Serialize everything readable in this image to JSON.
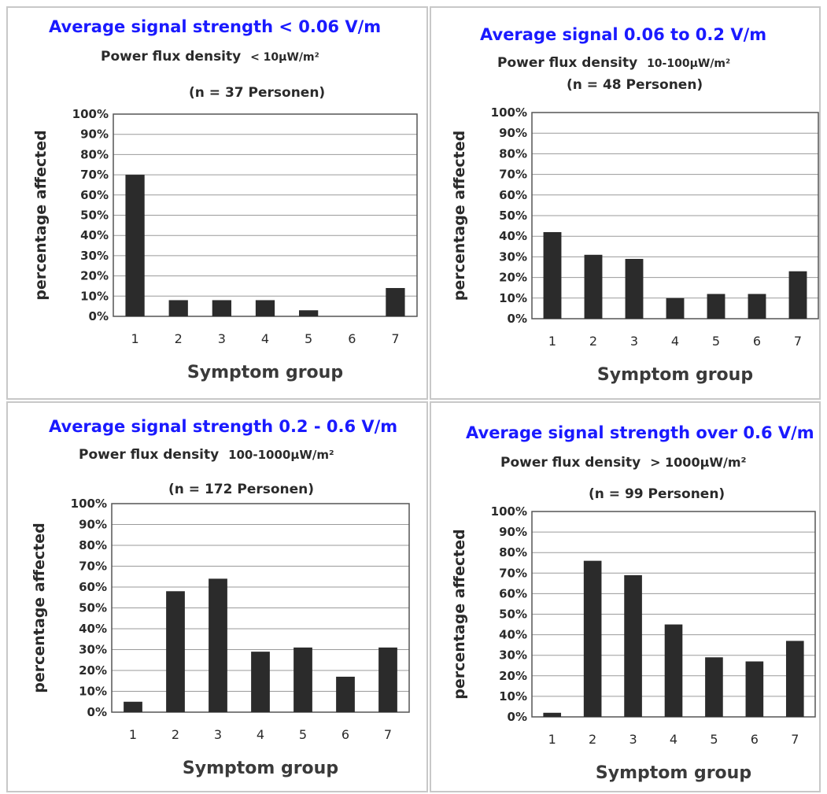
{
  "chart_data": [
    {
      "type": "bar",
      "title": "Average signal strength < 0.06 V/m",
      "subtitle_prefix": "Power flux density",
      "subtitle_value": "< 10μW/m²",
      "sample": "(n = 37 Personen)",
      "xlabel": "Symptom group",
      "ylabel": "percentage affected",
      "categories": [
        "1",
        "2",
        "3",
        "4",
        "5",
        "6",
        "7"
      ],
      "values": [
        70,
        8,
        8,
        8,
        3,
        0,
        14
      ],
      "ylim": [
        0,
        100
      ],
      "yticks": [
        "0%",
        "10%",
        "20%",
        "30%",
        "40%",
        "50%",
        "60%",
        "70%",
        "80%",
        "90%",
        "100%"
      ],
      "grid": true,
      "bar_color": "#2b2b2b",
      "title_color": "#1a1aff"
    },
    {
      "type": "bar",
      "title": "Average signal  0.06 to 0.2 V/m",
      "subtitle_prefix": "Power flux density",
      "subtitle_value": "10-100μW/m²",
      "sample": "(n = 48 Personen)",
      "xlabel": "Symptom group",
      "ylabel": "percentage affected",
      "categories": [
        "1",
        "2",
        "3",
        "4",
        "5",
        "6",
        "7"
      ],
      "values": [
        42,
        31,
        29,
        10,
        12,
        12,
        23
      ],
      "ylim": [
        0,
        100
      ],
      "yticks": [
        "0%",
        "10%",
        "20%",
        "30%",
        "40%",
        "50%",
        "60%",
        "70%",
        "80%",
        "90%",
        "100%"
      ],
      "grid": true,
      "bar_color": "#2b2b2b",
      "title_color": "#1a1aff"
    },
    {
      "type": "bar",
      "title": "Average signal strength 0.2 - 0.6 V/m",
      "subtitle_prefix": "Power flux density",
      "subtitle_value": "100-1000μW/m²",
      "sample": "(n = 172 Personen)",
      "xlabel": "Symptom group",
      "ylabel": "percentage affected",
      "categories": [
        "1",
        "2",
        "3",
        "4",
        "5",
        "6",
        "7"
      ],
      "values": [
        5,
        58,
        64,
        29,
        31,
        17,
        31
      ],
      "ylim": [
        0,
        100
      ],
      "yticks": [
        "0%",
        "10%",
        "20%",
        "30%",
        "40%",
        "50%",
        "60%",
        "70%",
        "80%",
        "90%",
        "100%"
      ],
      "grid": true,
      "bar_color": "#2b2b2b",
      "title_color": "#1a1aff"
    },
    {
      "type": "bar",
      "title": "Average signal strength over 0.6 V/m",
      "subtitle_prefix": "Power flux density",
      "subtitle_value": "> 1000μW/m²",
      "sample": "(n = 99 Personen)",
      "xlabel": "Symptom group",
      "ylabel": "percentage affected",
      "categories": [
        "1",
        "2",
        "3",
        "4",
        "5",
        "6",
        "7"
      ],
      "values": [
        2,
        76,
        69,
        45,
        29,
        27,
        37
      ],
      "ylim": [
        0,
        100
      ],
      "yticks": [
        "0%",
        "10%",
        "20%",
        "30%",
        "40%",
        "50%",
        "60%",
        "70%",
        "80%",
        "90%",
        "100%"
      ],
      "grid": true,
      "bar_color": "#2b2b2b",
      "title_color": "#1a1aff"
    }
  ]
}
